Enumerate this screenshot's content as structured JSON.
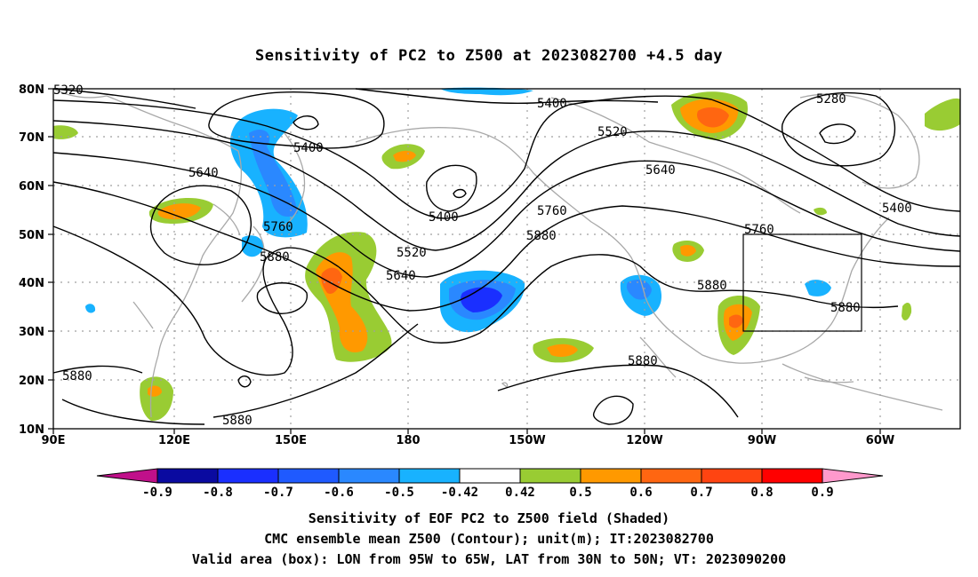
{
  "title": "Sensitivity of PC2 to Z500 at 2023082700 +4.5 day",
  "lat_labels": [
    "80N",
    "70N",
    "60N",
    "50N",
    "40N",
    "30N",
    "20N",
    "10N"
  ],
  "lon_labels": [
    "90E",
    "120E",
    "150E",
    "180",
    "150W",
    "120W",
    "90W",
    "60W"
  ],
  "contour_labels": {
    "c5280_ne": "5280",
    "c5320_nw": "5320",
    "c5400_top": "5400",
    "c5400_mid": "5400",
    "c5400_low": "5400",
    "c5400_east": "5400",
    "c5520_a": "5520",
    "c5520_b": "5520",
    "c5640_a": "5640",
    "c5640_b": "5640",
    "c5640_c": "5640",
    "c5760_a": "5760",
    "c5760_b": "5760",
    "c5760_c": "5760",
    "c5880_a": "5880",
    "c5880_b": "5880",
    "c5880_c": "5880",
    "c5880_d": "5880",
    "c5880_e": "5880",
    "c5880_f": "5880",
    "c5880_g": "5880"
  },
  "colorbar": {
    "labels": [
      "-0.9",
      "-0.8",
      "-0.7",
      "-0.6",
      "-0.5",
      "-0.42",
      "0.42",
      "0.5",
      "0.6",
      "0.7",
      "0.8",
      "0.9"
    ],
    "colors": [
      "#0a0aa0",
      "#1a2fff",
      "#1f5aff",
      "#2a88ff",
      "#18b2ff",
      "#ffffff",
      "#99cc33",
      "#ff9900",
      "#ff6611",
      "#ff4411",
      "#ff0000"
    ],
    "left_end_color": "#c0108a",
    "right_end_color": "#ff99cc"
  },
  "footer": {
    "line1": "Sensitivity of EOF PC2 to Z500 field (Shaded)",
    "line2": "CMC ensemble mean Z500 (Contour); unit(m); IT:2023082700",
    "line3": "Valid area (box): LON from 95W to 65W, LAT from 30N to 50N; VT: 2023090200"
  }
}
